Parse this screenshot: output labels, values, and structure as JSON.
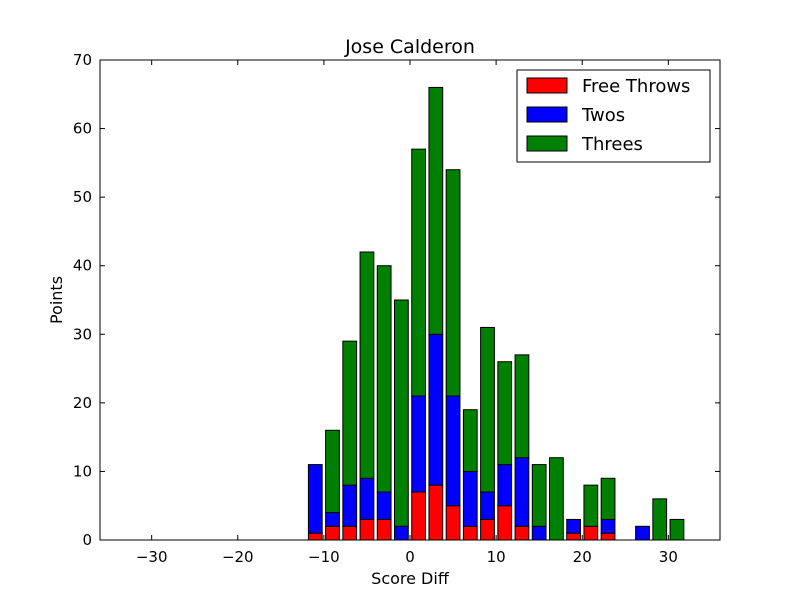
{
  "chart_data": {
    "type": "bar",
    "stacked": true,
    "title": "Jose Calderon",
    "xlabel": "Score Diff",
    "ylabel": "Points",
    "xlim": [
      -36,
      36
    ],
    "ylim": [
      0,
      70
    ],
    "xticks": [
      -30,
      -20,
      -10,
      0,
      10,
      20,
      30
    ],
    "yticks": [
      0,
      10,
      20,
      30,
      40,
      50,
      60,
      70
    ],
    "bar_width": 1.6,
    "legend_position": "top-right",
    "x": [
      -35,
      -33,
      -31,
      -29,
      -27,
      -25,
      -23,
      -21,
      -19,
      -17,
      -15,
      -13,
      -11,
      -9,
      -7,
      -5,
      -3,
      -1,
      1,
      3,
      5,
      7,
      9,
      11,
      13,
      15,
      17,
      19,
      21,
      23,
      25,
      27,
      29,
      31,
      33,
      35
    ],
    "series": [
      {
        "name": "Free Throws",
        "color": "#ff0000",
        "values": [
          0,
          0,
          0,
          0,
          0,
          0,
          0,
          0,
          0,
          0,
          0,
          0,
          1,
          2,
          2,
          3,
          3,
          0,
          7,
          8,
          5,
          2,
          3,
          5,
          2,
          0,
          0,
          1,
          2,
          1,
          0,
          0,
          0,
          0,
          0,
          0
        ]
      },
      {
        "name": "Twos",
        "color": "#0000ff",
        "values": [
          0,
          0,
          0,
          0,
          0,
          0,
          0,
          0,
          0,
          0,
          0,
          0,
          10,
          2,
          6,
          6,
          4,
          2,
          14,
          22,
          16,
          8,
          4,
          6,
          10,
          2,
          0,
          2,
          0,
          2,
          0,
          2,
          0,
          0,
          0,
          0
        ]
      },
      {
        "name": "Threes",
        "color": "#008000",
        "values": [
          0,
          0,
          0,
          0,
          0,
          0,
          0,
          0,
          0,
          0,
          0,
          0,
          0,
          12,
          21,
          33,
          33,
          33,
          36,
          36,
          33,
          9,
          24,
          15,
          15,
          9,
          12,
          0,
          6,
          6,
          0,
          0,
          6,
          3,
          0,
          0
        ]
      }
    ]
  }
}
